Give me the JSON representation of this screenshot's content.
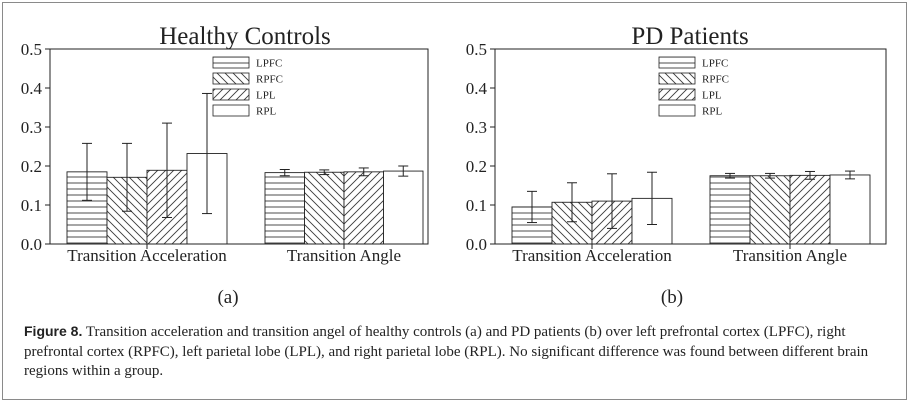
{
  "colors": {
    "axis": "#222222",
    "hatch": "#3a3a3a",
    "bar_fill": "#ffffff"
  },
  "chart_data": [
    {
      "type": "bar",
      "title": "Healthy Controls",
      "xlabel": "",
      "ylabel": "",
      "ylim": [
        0,
        0.5
      ],
      "yticks": [
        "0.0",
        "0.1",
        "0.2",
        "0.3",
        "0.4",
        "0.5"
      ],
      "grid": false,
      "legend_position": "top-center",
      "categories": [
        "Transition Acceleration",
        "Transition Angle"
      ],
      "series": [
        {
          "name": "LPFC",
          "hatch": "horizontal",
          "values": [
            0.185,
            0.183
          ],
          "errors": [
            0.073,
            0.008
          ]
        },
        {
          "name": "RPFC",
          "hatch": "backslash",
          "values": [
            0.171,
            0.184
          ],
          "errors": [
            0.087,
            0.006
          ]
        },
        {
          "name": "LPL",
          "hatch": "slash",
          "values": [
            0.189,
            0.185
          ],
          "errors": [
            0.121,
            0.01
          ]
        },
        {
          "name": "RPL",
          "hatch": "none",
          "values": [
            0.232,
            0.187
          ],
          "errors": [
            0.154,
            0.013
          ]
        }
      ],
      "sublabel": "(a)"
    },
    {
      "type": "bar",
      "title": "PD Patients",
      "xlabel": "",
      "ylabel": "",
      "ylim": [
        0,
        0.5
      ],
      "yticks": [
        "0.0",
        "0.1",
        "0.2",
        "0.3",
        "0.4",
        "0.5"
      ],
      "grid": false,
      "legend_position": "top-center",
      "categories": [
        "Transition Acceleration",
        "Transition Angle"
      ],
      "series": [
        {
          "name": "LPFC",
          "hatch": "horizontal",
          "values": [
            0.095,
            0.175
          ],
          "errors": [
            0.04,
            0.006
          ]
        },
        {
          "name": "RPFC",
          "hatch": "backslash",
          "values": [
            0.107,
            0.175
          ],
          "errors": [
            0.05,
            0.006
          ]
        },
        {
          "name": "LPL",
          "hatch": "slash",
          "values": [
            0.11,
            0.176
          ],
          "errors": [
            0.07,
            0.01
          ]
        },
        {
          "name": "RPL",
          "hatch": "none",
          "values": [
            0.117,
            0.177
          ],
          "errors": [
            0.067,
            0.01
          ]
        }
      ],
      "sublabel": "(b)"
    }
  ],
  "caption": {
    "title": "Figure 8.",
    "text": " Transition acceleration and transition angel of healthy controls (a) and PD patients (b) over left prefrontal cortex (LPFC), right prefrontal cortex (RPFC), left parietal lobe (LPL), and right parietal lobe (RPL). No significant difference was found between different brain regions within a group."
  }
}
